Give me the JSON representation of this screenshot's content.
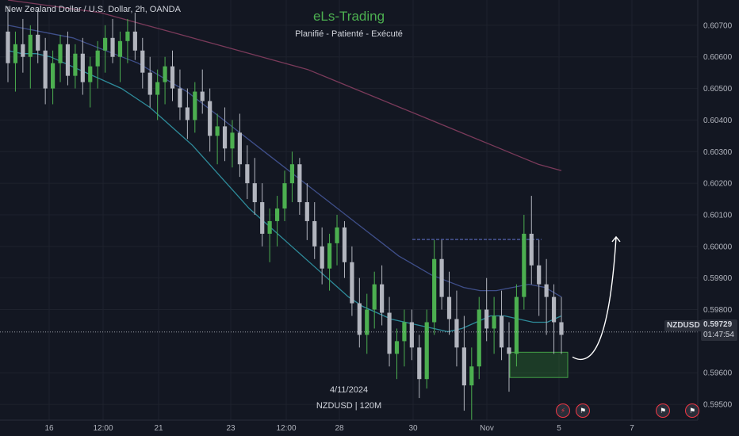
{
  "header": {
    "symbol_title": "New Zealand Dollar / U.S. Dollar, 2h, OANDA",
    "brand": "eLs-Trading",
    "tagline": "Planifié - Patienté - Exécuté"
  },
  "footer": {
    "date": "4/11/2024",
    "symbol_tf": "NZDUSD | 120M"
  },
  "price_tags": {
    "symbol": "NZDUSD",
    "price": "0.59729",
    "countdown": "01:47:54"
  },
  "event_icons": [
    "flash-icon",
    "us-flag-icon",
    "us-flag-icon",
    "us-flag-icon"
  ],
  "colors": {
    "background": "#131722",
    "bull": "#4caf50",
    "bear": "#b2b5be",
    "ma_fast": "#2e8b9a",
    "ma_mid": "#3f4f8a",
    "ma_slow": "#7a3a5a",
    "resistance": "#5b6cc0",
    "zone": "#2e7d32"
  },
  "chart_data": {
    "type": "candlestick",
    "y_ticks": [
      0.607,
      0.606,
      0.605,
      0.604,
      0.603,
      0.602,
      0.601,
      0.6,
      0.599,
      0.598,
      0.596,
      0.595
    ],
    "x_ticks": [
      "16",
      "12:00",
      "21",
      "23",
      "12:00",
      "28",
      "30",
      "Nov",
      "5",
      "7"
    ],
    "ylim": [
      0.5945,
      0.6078
    ],
    "current_price": 0.59729,
    "resistance_level": 0.60022,
    "demand_zone": [
      0.59585,
      0.59665
    ],
    "projection_target": 0.6003,
    "grid": true,
    "ohlc": [
      [
        0.6068,
        0.6076,
        0.6052,
        0.6058
      ],
      [
        0.6058,
        0.6068,
        0.6049,
        0.6064
      ],
      [
        0.6064,
        0.6072,
        0.6055,
        0.606
      ],
      [
        0.606,
        0.607,
        0.605,
        0.6067
      ],
      [
        0.6067,
        0.6075,
        0.6058,
        0.6062
      ],
      [
        0.6062,
        0.6066,
        0.6045,
        0.605
      ],
      [
        0.605,
        0.6062,
        0.6045,
        0.6058
      ],
      [
        0.6058,
        0.6067,
        0.6052,
        0.6064
      ],
      [
        0.6064,
        0.6068,
        0.6051,
        0.6054
      ],
      [
        0.6054,
        0.6064,
        0.605,
        0.6061
      ],
      [
        0.6061,
        0.6066,
        0.6048,
        0.6052
      ],
      [
        0.6052,
        0.606,
        0.6044,
        0.6057
      ],
      [
        0.6057,
        0.6065,
        0.605,
        0.6062
      ],
      [
        0.6062,
        0.607,
        0.6055,
        0.6066
      ],
      [
        0.6066,
        0.6072,
        0.6058,
        0.606
      ],
      [
        0.606,
        0.6068,
        0.6052,
        0.6065
      ],
      [
        0.6065,
        0.6072,
        0.6058,
        0.6068
      ],
      [
        0.6068,
        0.6074,
        0.6059,
        0.6062
      ],
      [
        0.6062,
        0.6066,
        0.605,
        0.6055
      ],
      [
        0.6055,
        0.606,
        0.6044,
        0.6048
      ],
      [
        0.6048,
        0.6056,
        0.604,
        0.6052
      ],
      [
        0.6052,
        0.606,
        0.6045,
        0.6057
      ],
      [
        0.6057,
        0.6062,
        0.6046,
        0.605
      ],
      [
        0.605,
        0.6056,
        0.604,
        0.6044
      ],
      [
        0.6044,
        0.605,
        0.6034,
        0.604
      ],
      [
        0.604,
        0.6052,
        0.6036,
        0.6049
      ],
      [
        0.6049,
        0.6056,
        0.6042,
        0.6046
      ],
      [
        0.6046,
        0.605,
        0.603,
        0.6035
      ],
      [
        0.6035,
        0.6042,
        0.6026,
        0.6038
      ],
      [
        0.6038,
        0.6044,
        0.6027,
        0.6031
      ],
      [
        0.6031,
        0.604,
        0.6025,
        0.6036
      ],
      [
        0.6036,
        0.6042,
        0.6022,
        0.6026
      ],
      [
        0.6026,
        0.6032,
        0.6015,
        0.602
      ],
      [
        0.602,
        0.6028,
        0.601,
        0.6014
      ],
      [
        0.6014,
        0.602,
        0.6,
        0.6004
      ],
      [
        0.6004,
        0.6012,
        0.5995,
        0.6008
      ],
      [
        0.6008,
        0.6016,
        0.6,
        0.6012
      ],
      [
        0.6012,
        0.6024,
        0.6008,
        0.602
      ],
      [
        0.602,
        0.603,
        0.6014,
        0.6026
      ],
      [
        0.6026,
        0.6028,
        0.601,
        0.6014
      ],
      [
        0.6014,
        0.602,
        0.6002,
        0.6008
      ],
      [
        0.6008,
        0.6014,
        0.5996,
        0.6
      ],
      [
        0.6,
        0.6006,
        0.5988,
        0.5993
      ],
      [
        0.5993,
        0.6004,
        0.5986,
        0.6001
      ],
      [
        0.6001,
        0.601,
        0.5994,
        0.6006
      ],
      [
        0.6006,
        0.6008,
        0.599,
        0.5995
      ],
      [
        0.5995,
        0.6,
        0.5978,
        0.5982
      ],
      [
        0.5982,
        0.599,
        0.5968,
        0.5972
      ],
      [
        0.5972,
        0.5985,
        0.5966,
        0.598
      ],
      [
        0.598,
        0.5992,
        0.5974,
        0.5988
      ],
      [
        0.5988,
        0.5994,
        0.5975,
        0.5979
      ],
      [
        0.5979,
        0.5984,
        0.5962,
        0.5966
      ],
      [
        0.5966,
        0.5974,
        0.5958,
        0.597
      ],
      [
        0.597,
        0.598,
        0.5962,
        0.5976
      ],
      [
        0.5976,
        0.598,
        0.5964,
        0.5968
      ],
      [
        0.5968,
        0.5972,
        0.5952,
        0.5958
      ],
      [
        0.5958,
        0.598,
        0.5955,
        0.5976
      ],
      [
        0.5976,
        0.6002,
        0.5972,
        0.5996
      ],
      [
        0.5996,
        0.6002,
        0.598,
        0.5984
      ],
      [
        0.5984,
        0.5992,
        0.5972,
        0.5977
      ],
      [
        0.5977,
        0.5986,
        0.5962,
        0.5968
      ],
      [
        0.5968,
        0.5978,
        0.5948,
        0.5956
      ],
      [
        0.5956,
        0.5968,
        0.5944,
        0.5962
      ],
      [
        0.5962,
        0.5984,
        0.5958,
        0.598
      ],
      [
        0.598,
        0.599,
        0.597,
        0.5974
      ],
      [
        0.5974,
        0.5984,
        0.5966,
        0.5978
      ],
      [
        0.5978,
        0.5986,
        0.5964,
        0.5968
      ],
      [
        0.5968,
        0.5976,
        0.5954,
        0.5966
      ],
      [
        0.5966,
        0.5988,
        0.5962,
        0.5984
      ],
      [
        0.5984,
        0.601,
        0.598,
        0.6004
      ],
      [
        0.6004,
        0.6016,
        0.5988,
        0.5994
      ],
      [
        0.5994,
        0.6002,
        0.5978,
        0.5988
      ],
      [
        0.5988,
        0.5996,
        0.5972,
        0.5984
      ],
      [
        0.5984,
        0.5988,
        0.5966,
        0.5976
      ],
      [
        0.5976,
        0.5984,
        0.5966,
        0.5972
      ]
    ],
    "ma_fast": [
      0.6062,
      0.6061,
      0.6061,
      0.606,
      0.6058,
      0.6056,
      0.6054,
      0.6052,
      0.605,
      0.6047,
      0.6044,
      0.604,
      0.6036,
      0.6032,
      0.6027,
      0.6022,
      0.6017,
      0.6012,
      0.6008,
      0.6004,
      0.6,
      0.5996,
      0.5992,
      0.5988,
      0.5984,
      0.5981,
      0.5979,
      0.5977,
      0.5976,
      0.5975,
      0.5974,
      0.5973,
      0.5974,
      0.5976,
      0.5978,
      0.5978,
      0.5977,
      0.5976,
      0.5976,
      0.5978
    ],
    "ma_mid": [
      0.607,
      0.6069,
      0.6068,
      0.6067,
      0.6066,
      0.6064,
      0.6062,
      0.606,
      0.6058,
      0.6055,
      0.6052,
      0.6049,
      0.6045,
      0.6041,
      0.6037,
      0.6033,
      0.6029,
      0.6025,
      0.6021,
      0.6017,
      0.6013,
      0.6009,
      0.6005,
      0.6001,
      0.5997,
      0.5994,
      0.5991,
      0.5989,
      0.5987,
      0.5986,
      0.5986,
      0.5987,
      0.5988,
      0.5987,
      0.5984
    ],
    "ma_slow": [
      0.6078,
      0.6077,
      0.6076,
      0.6075,
      0.6074,
      0.6072,
      0.607,
      0.6068,
      0.6066,
      0.6064,
      0.6062,
      0.606,
      0.6058,
      0.6056,
      0.6053,
      0.605,
      0.6047,
      0.6044,
      0.6041,
      0.6038,
      0.6035,
      0.6032,
      0.6029,
      0.6026,
      0.6024
    ]
  }
}
